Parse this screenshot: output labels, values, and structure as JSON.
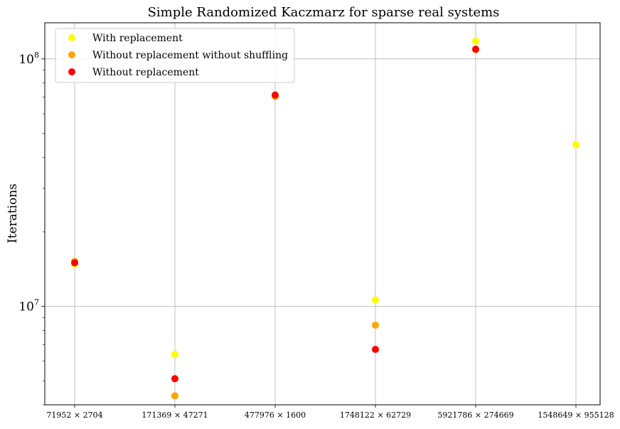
{
  "chart_data": {
    "type": "scatter",
    "title": "Simple Randomized Kaczmarz for sparse real systems",
    "xlabel": "",
    "ylabel": "Iterations",
    "yscale": "log",
    "ylim": [
      4000000,
      140000000
    ],
    "grid": true,
    "legend": "top-left",
    "categories": [
      "71952 × 2704",
      "171369 × 47271",
      "477976 × 1600",
      "1748122 × 62729",
      "5921786 × 274669",
      "1548649 × 955128"
    ],
    "yticks": [
      {
        "value": 10000000,
        "base": "10",
        "exp": "7"
      },
      {
        "value": 100000000,
        "base": "10",
        "exp": "8"
      }
    ],
    "series": [
      {
        "name": "With replacement",
        "color": "#ffff00",
        "values": [
          14800000,
          6400000,
          71000000,
          10600000,
          118000000,
          45000000
        ]
      },
      {
        "name": "Without replacement without shuffling",
        "color": "#ffa500",
        "values": [
          15200000,
          4350000,
          70500000,
          8400000,
          109000000,
          null
        ]
      },
      {
        "name": "Without replacement",
        "color": "#ff0000",
        "values": [
          15000000,
          5100000,
          71500000,
          6700000,
          109500000,
          null
        ]
      }
    ]
  }
}
